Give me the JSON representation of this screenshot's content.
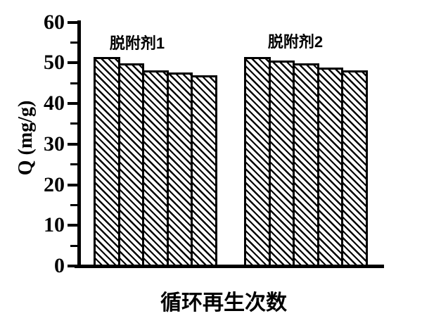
{
  "figure": {
    "background_color": "#ffffff",
    "ink_color": "#000000"
  },
  "chart_data": {
    "type": "bar",
    "title": "",
    "xlabel": "循环再生次数",
    "ylabel": "Q (mg/g)",
    "ylim": [
      0,
      60
    ],
    "yticks": [
      0,
      10,
      20,
      30,
      40,
      50,
      60
    ],
    "minor_yticks": [
      5,
      15,
      25,
      35,
      45,
      55
    ],
    "grid": false,
    "legend": "none",
    "bar_style": {
      "fill": "diagonal-hatch-down",
      "hatch_color": "#000000",
      "face_color": "#ffffff",
      "edge_color": "#000000"
    },
    "groups": [
      {
        "label": "脱附剂1",
        "values": [
          51.4,
          49.8,
          48.2,
          47.6,
          46.9
        ]
      },
      {
        "label": "脱附剂2",
        "values": [
          51.5,
          50.5,
          49.8,
          48.9,
          48.2
        ]
      }
    ]
  }
}
